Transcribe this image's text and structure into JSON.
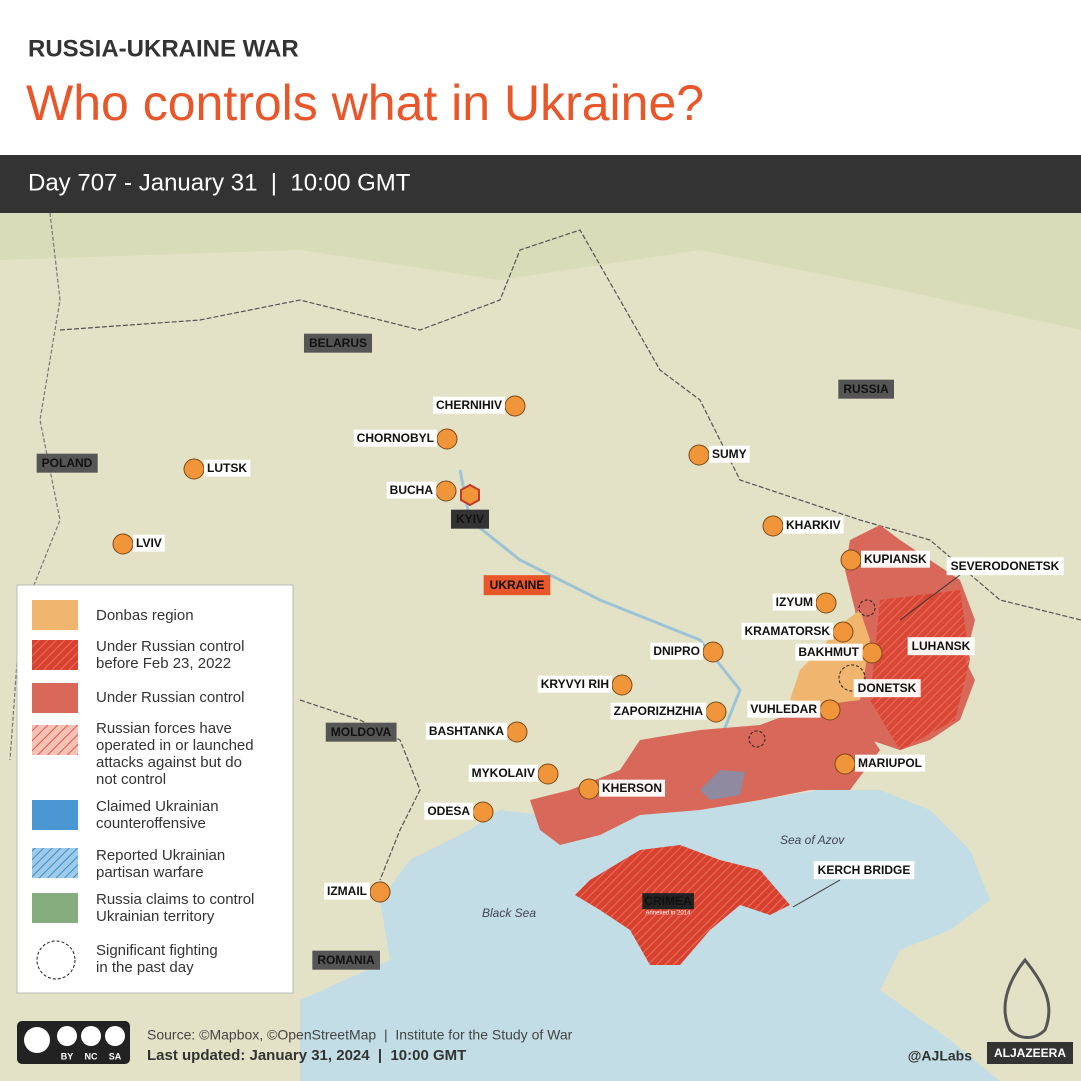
{
  "header": {
    "kicker": "RUSSIA-UKRAINE WAR",
    "title": "Who controls what in Ukraine?",
    "date_bar": "Day 707 - January 31  |  10:00 GMT"
  },
  "countries": [
    "BELARUS",
    "RUSSIA",
    "POLAND",
    "MOLDOVA",
    "ROMANIA"
  ],
  "main_country": "UKRAINE",
  "capital": "KYIV",
  "cities": [
    "CHERNIHIV",
    "CHORNOBYL",
    "LUTSK",
    "BUCHA",
    "LVIV",
    "SUMY",
    "KHARKIV",
    "KUPIANSK",
    "IZYUM",
    "KRAMATORSK",
    "BAKHMUT",
    "DNIPRO",
    "KRYVYI RIH",
    "ZAPORIZHZHIA",
    "VUHLEDAR",
    "BASHTANKA",
    "MARIUPOL",
    "MYKOLAIV",
    "KHERSON",
    "ODESA",
    "IZMAIL"
  ],
  "region_labels": [
    "SEVERODONETSK",
    "LUHANSK",
    "DONETSK",
    "KERCH BRIDGE"
  ],
  "crimea": {
    "name": "CRIMEA",
    "note": "Annexed in 2014"
  },
  "seas": [
    "Sea of Azov",
    "Black Sea"
  ],
  "legend": {
    "items": [
      {
        "lines": [
          "Donbas region"
        ]
      },
      {
        "lines": [
          "Under Russian control",
          "before Feb 23, 2022"
        ]
      },
      {
        "lines": [
          "Under Russian control"
        ]
      },
      {
        "lines": [
          "Russian forces have",
          "operated in or launched",
          "attacks against but do",
          "not control"
        ]
      },
      {
        "lines": [
          "Claimed Ukrainian",
          "counteroffensive"
        ]
      },
      {
        "lines": [
          "Reported Ukrainian",
          "partisan warfare"
        ]
      },
      {
        "lines": [
          "Russia claims to control",
          "Ukrainian territory"
        ]
      },
      {
        "lines": [
          "Significant fighting",
          "in the past day"
        ]
      }
    ]
  },
  "footer": {
    "source": "Source: ©Mapbox, ©OpenStreetMap  |  Institute for the Study of War",
    "updated": "Last updated: January 31, 2024  |  10:00 GMT",
    "handle": "@AJLabs",
    "logo": "ALJAZEERA",
    "license": [
      "BY",
      "NC",
      "SA"
    ]
  }
}
